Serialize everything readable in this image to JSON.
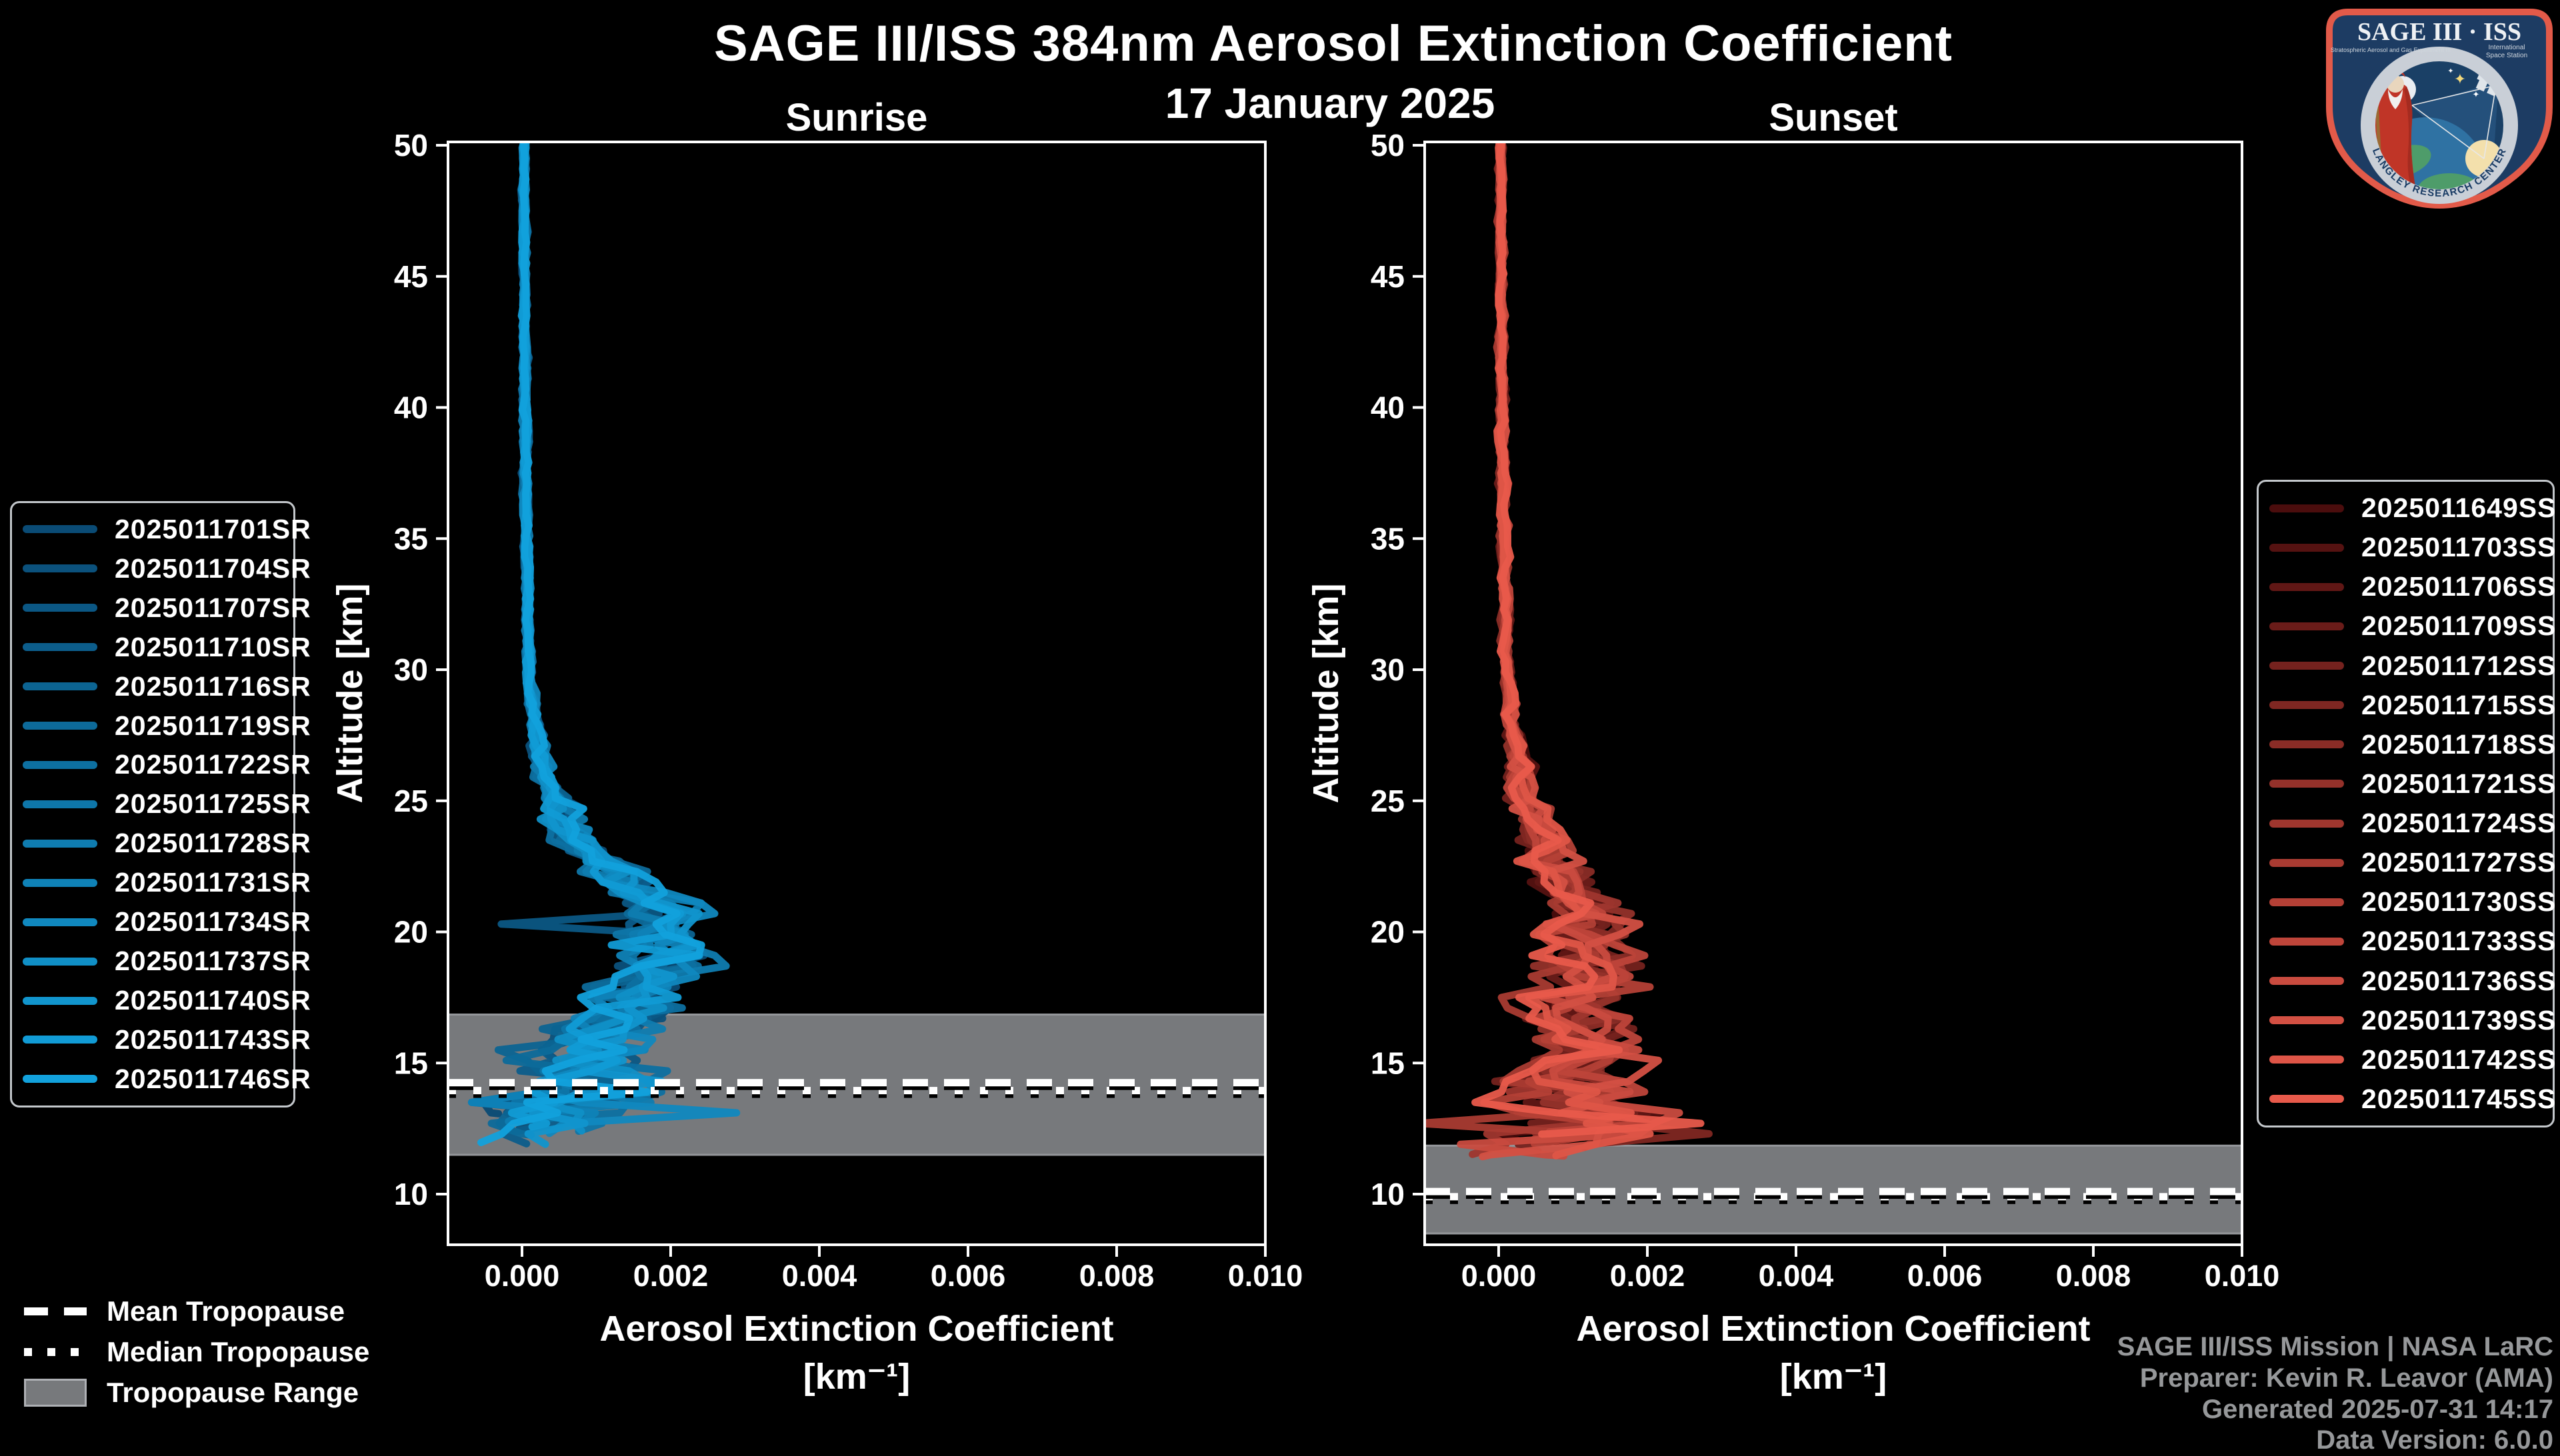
{
  "header": {
    "title": "SAGE III/ISS 384nm Aerosol Extinction Coefficient",
    "date": "17 January 2025"
  },
  "tropopause_legend": [
    {
      "label": "Mean Tropopause",
      "style": "dashed"
    },
    {
      "label": "Median Tropopause",
      "style": "dotted"
    },
    {
      "label": "Tropopause Range",
      "style": "band"
    }
  ],
  "credits": {
    "lines": [
      "SAGE III/ISS Mission | NASA LaRC",
      "Preparer: Kevin R. Leavor (AMA)",
      "Generated 2025-07-31 14:17",
      "Data Version: 6.0.0"
    ]
  },
  "logo": {
    "title": "SAGE III · ISS",
    "subtitle_left": "Stratospheric Aerosol and Gas Experiment III",
    "subtitle_right_1": "International",
    "subtitle_right_2": "Space Station",
    "ring_text": "BALL · NASA LANGLEY RESEARCH CENTER · TAS-I · ESA"
  },
  "chart_data": {
    "type": "line",
    "title": "SAGE III/ISS 384nm Aerosol Extinction Coefficient",
    "subtitle": "17 January 2025",
    "xlabel": "Aerosol Extinction Coefficient",
    "xunit": "[km⁻¹]",
    "ylabel": "Altitude [km]",
    "xlim": [
      -0.001,
      0.01
    ],
    "ylim": [
      8.1,
      50.1
    ],
    "xticks": [
      0,
      0.002,
      0.004,
      0.006,
      0.008,
      0.01
    ],
    "xtick_labels": [
      "0.000",
      "0.002",
      "0.004",
      "0.006",
      "0.008",
      "0.010"
    ],
    "yticks": [
      10,
      15,
      20,
      25,
      30,
      35,
      40,
      45,
      50
    ],
    "grid": false,
    "legend_position": "outside",
    "styles": {
      "background": "#000000",
      "foreground": "#ffffff",
      "band_color": "#77797c",
      "band_edge_color": "#94969a",
      "mean_line_color": "#ffffff",
      "median_line_color": "#ffffff",
      "shadow_color": "#000000"
    },
    "panels": [
      {
        "name": "Sunrise",
        "series": [
          "2025011701SR",
          "2025011704SR",
          "2025011707SR",
          "2025011710SR",
          "2025011716SR",
          "2025011719SR",
          "2025011722SR",
          "2025011725SR",
          "2025011728SR",
          "2025011731SR",
          "2025011734SR",
          "2025011737SR",
          "2025011740SR",
          "2025011743SR",
          "2025011746SR"
        ],
        "color_ramp": [
          "#0a4b75",
          "#12a1dc"
        ],
        "tropopause": {
          "mean_km": 14.25,
          "median_km": 13.95,
          "range_km": [
            11.5,
            16.85
          ]
        },
        "profile_altitude_km": [
          50,
          45,
          40,
          35,
          30,
          28,
          26,
          25,
          24,
          23,
          22,
          21.5,
          21,
          20.5,
          20,
          19.5,
          19,
          18.5,
          18,
          17.5,
          17,
          16.5,
          16,
          15.5,
          15,
          14.5,
          14,
          13.5,
          13,
          12.5,
          12,
          11.8
        ],
        "profile_extinction": [
          3e-05,
          3e-05,
          4e-05,
          6e-05,
          0.0001,
          0.00015,
          0.0003,
          0.00045,
          0.0006,
          0.0009,
          0.0013,
          0.0016,
          0.0019,
          0.0019,
          0.0018,
          0.0019,
          0.002,
          0.0018,
          0.0016,
          0.0014,
          0.0013,
          0.0011,
          0.001,
          0.0009,
          0.00078,
          0.00065,
          0.0007,
          0.0006,
          0.0005,
          0.00042,
          0.00035,
          0.0003
        ],
        "noise_altitude_km": [
          50,
          30,
          27,
          25,
          23,
          21,
          19,
          17,
          15,
          13.5,
          12.5,
          11.8
        ],
        "noise_amplitude": [
          2e-05,
          3e-05,
          7e-05,
          0.00013,
          0.00022,
          0.00038,
          0.00042,
          0.00055,
          0.0006,
          0.0008,
          0.0005,
          0.00035
        ],
        "profile_bottom_km": [
          11.8,
          13.2
        ],
        "anomalies": [
          {
            "series": 2,
            "altitude_km": 20.35,
            "extinction": -0.00095,
            "width_km": 0.18
          },
          {
            "series": 13,
            "altitude_km": 19.0,
            "extinction": 0.00275,
            "width_km": 0.25
          },
          {
            "series": 10,
            "altitude_km": 13.2,
            "extinction": 0.0026,
            "width_km": 0.3
          },
          {
            "series": 12,
            "altitude_km": 16.2,
            "extinction": 0.0025,
            "width_km": 0.35
          },
          {
            "series": 5,
            "altitude_km": 13.6,
            "extinction": -0.0007,
            "width_km": 0.3
          },
          {
            "series": 8,
            "altitude_km": 12.3,
            "extinction": -0.0006,
            "width_km": 0.3
          }
        ]
      },
      {
        "name": "Sunset",
        "series": [
          "2025011649SS",
          "2025011703SS",
          "2025011706SS",
          "2025011709SS",
          "2025011712SS",
          "2025011715SS",
          "2025011718SS",
          "2025011721SS",
          "2025011724SS",
          "2025011727SS",
          "2025011730SS",
          "2025011733SS",
          "2025011736SS",
          "2025011739SS",
          "2025011742SS",
          "2025011745SS"
        ],
        "color_ramp": [
          "#4b0d0d",
          "#e85a4b"
        ],
        "tropopause": {
          "mean_km": 10.1,
          "median_km": 9.9,
          "range_km": [
            8.5,
            11.85
          ]
        },
        "profile_altitude_km": [
          50,
          45,
          40,
          35,
          30,
          28,
          26,
          25,
          24,
          23,
          22,
          21,
          20.5,
          20,
          19.5,
          19,
          18,
          17,
          16,
          15,
          14,
          13.5,
          13,
          12.5,
          12,
          11.5
        ],
        "profile_extinction": [
          3e-05,
          3e-05,
          5e-05,
          7e-05,
          0.00012,
          0.00018,
          0.0003,
          0.0004,
          0.0005,
          0.00065,
          0.0008,
          0.001,
          0.00115,
          0.00125,
          0.0012,
          0.00115,
          0.0011,
          0.001,
          0.00105,
          0.0011,
          0.00105,
          0.0011,
          0.00115,
          0.0012,
          0.0009,
          0.0006
        ],
        "noise_altitude_km": [
          50,
          30,
          27,
          25,
          23,
          21,
          19,
          17,
          15,
          13.5,
          12.5,
          11.5
        ],
        "noise_amplitude": [
          2e-05,
          4e-05,
          8e-05,
          0.00015,
          0.00025,
          0.00035,
          0.00042,
          0.00045,
          0.0005,
          0.0007,
          0.0009,
          0.0005
        ],
        "profile_bottom_km": [
          11.4,
          12.4
        ],
        "anomalies": [
          {
            "series": 14,
            "altitude_km": 12.1,
            "extinction": 0.0052,
            "width_km": 0.18
          },
          {
            "series": 12,
            "altitude_km": 12.45,
            "extinction": 0.0035,
            "width_km": 0.2
          },
          {
            "series": 15,
            "altitude_km": 12.6,
            "extinction": 0.0028,
            "width_km": 0.25
          },
          {
            "series": 9,
            "altitude_km": 12.8,
            "extinction": -0.0008,
            "width_km": 0.3
          },
          {
            "series": 11,
            "altitude_km": 13.3,
            "extinction": -0.0006,
            "width_km": 0.25
          }
        ]
      }
    ]
  }
}
